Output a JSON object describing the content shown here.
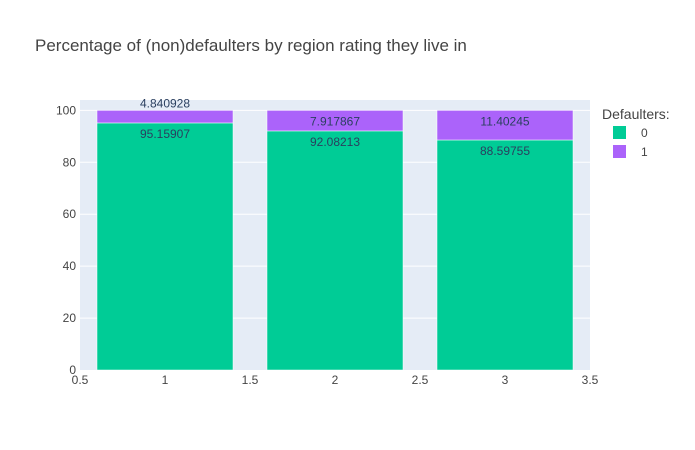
{
  "chart_data": {
    "type": "bar",
    "barmode": "stack",
    "title": "Percentage of (non)defaulters by region rating they live in",
    "x": [
      1,
      2,
      3
    ],
    "x_ticks": [
      0.5,
      1,
      1.5,
      2,
      2.5,
      3,
      3.5
    ],
    "x_tick_labels": [
      "0.5",
      "1",
      "1.5",
      "2",
      "2.5",
      "3",
      "3.5"
    ],
    "xlim": [
      0.5,
      3.5
    ],
    "y_ticks": [
      0,
      20,
      40,
      60,
      80,
      100
    ],
    "y_tick_labels": [
      "0",
      "20",
      "40",
      "60",
      "80",
      "100"
    ],
    "ylim": [
      0,
      104
    ],
    "grid": true,
    "legend_title": "Defaulters:",
    "legend_placement": "top-right",
    "series": [
      {
        "name": "0",
        "color": "#00cc96",
        "values": [
          95.15907,
          92.08213,
          88.59755
        ],
        "labels": [
          "95.15907",
          "92.08213",
          "88.59755"
        ]
      },
      {
        "name": "1",
        "color": "#ab63fa",
        "values": [
          4.840928,
          7.917867,
          11.40245
        ],
        "labels": [
          "4.840928",
          "7.917867",
          "11.40245"
        ]
      }
    ]
  }
}
